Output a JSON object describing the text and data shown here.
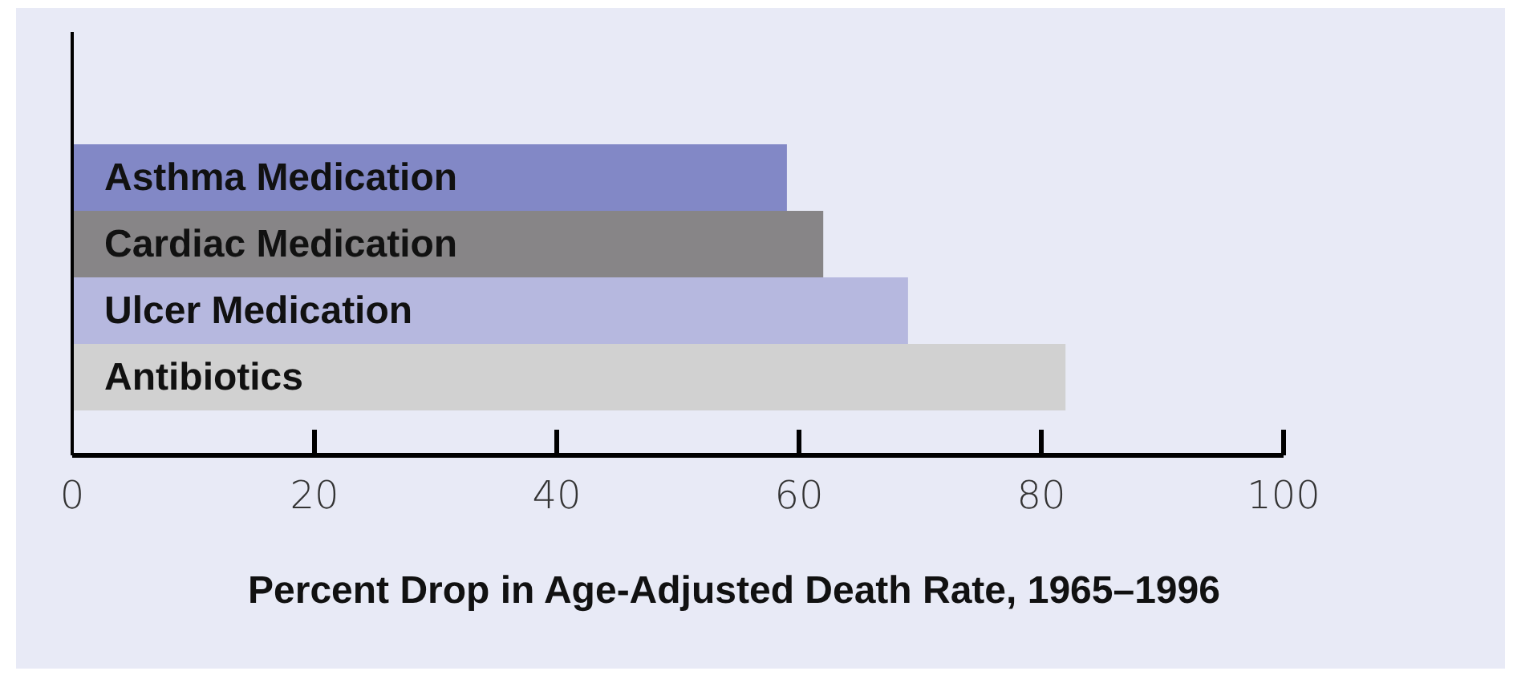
{
  "chart_data": {
    "type": "bar",
    "orientation": "horizontal",
    "xlabel": "Percent Drop in Age-Adjusted Death Rate, 1965–1996",
    "categories": [
      "Asthma Medication",
      "Cardiac Medication",
      "Ulcer Medication",
      "Antibiotics"
    ],
    "values": [
      59,
      62,
      69,
      82
    ],
    "colors": [
      "#8288c6",
      "#878587",
      "#b6b8df",
      "#d1d1d1"
    ],
    "xlim": [
      0,
      100
    ],
    "xticks": [
      0,
      20,
      40,
      60,
      80,
      100
    ]
  }
}
